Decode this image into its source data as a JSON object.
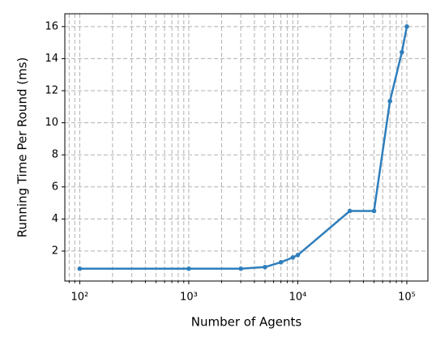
{
  "chart_data": {
    "type": "line",
    "xlabel": "Number of Agents",
    "ylabel": "Running Time Per Round (ms)",
    "x": [
      100,
      1000,
      3000,
      5000,
      7000,
      9000,
      10000,
      30000,
      50000,
      70000,
      90000,
      100000
    ],
    "series": [
      {
        "color": "#2f7ebc",
        "values": [
          0.9,
          0.9,
          0.9,
          1.0,
          1.3,
          1.6,
          1.75,
          4.5,
          4.5,
          11.35,
          14.4,
          16.0
        ]
      }
    ],
    "xscale": "log",
    "xlim": [
      73,
      156000
    ],
    "ylim": [
      0.13,
      16.8
    ],
    "xticks": [
      {
        "value": 100,
        "label": "10²"
      },
      {
        "value": 1000,
        "label": "10³"
      },
      {
        "value": 10000,
        "label": "10⁴"
      },
      {
        "value": 100000,
        "label": "10⁵"
      }
    ],
    "xminorticks": [
      80,
      90,
      200,
      300,
      400,
      500,
      600,
      700,
      800,
      900,
      2000,
      3000,
      4000,
      5000,
      6000,
      7000,
      8000,
      9000,
      20000,
      30000,
      40000,
      50000,
      60000,
      70000,
      80000,
      90000
    ],
    "yticks": [
      2,
      4,
      6,
      8,
      10,
      12,
      14,
      16
    ],
    "grid": true
  }
}
